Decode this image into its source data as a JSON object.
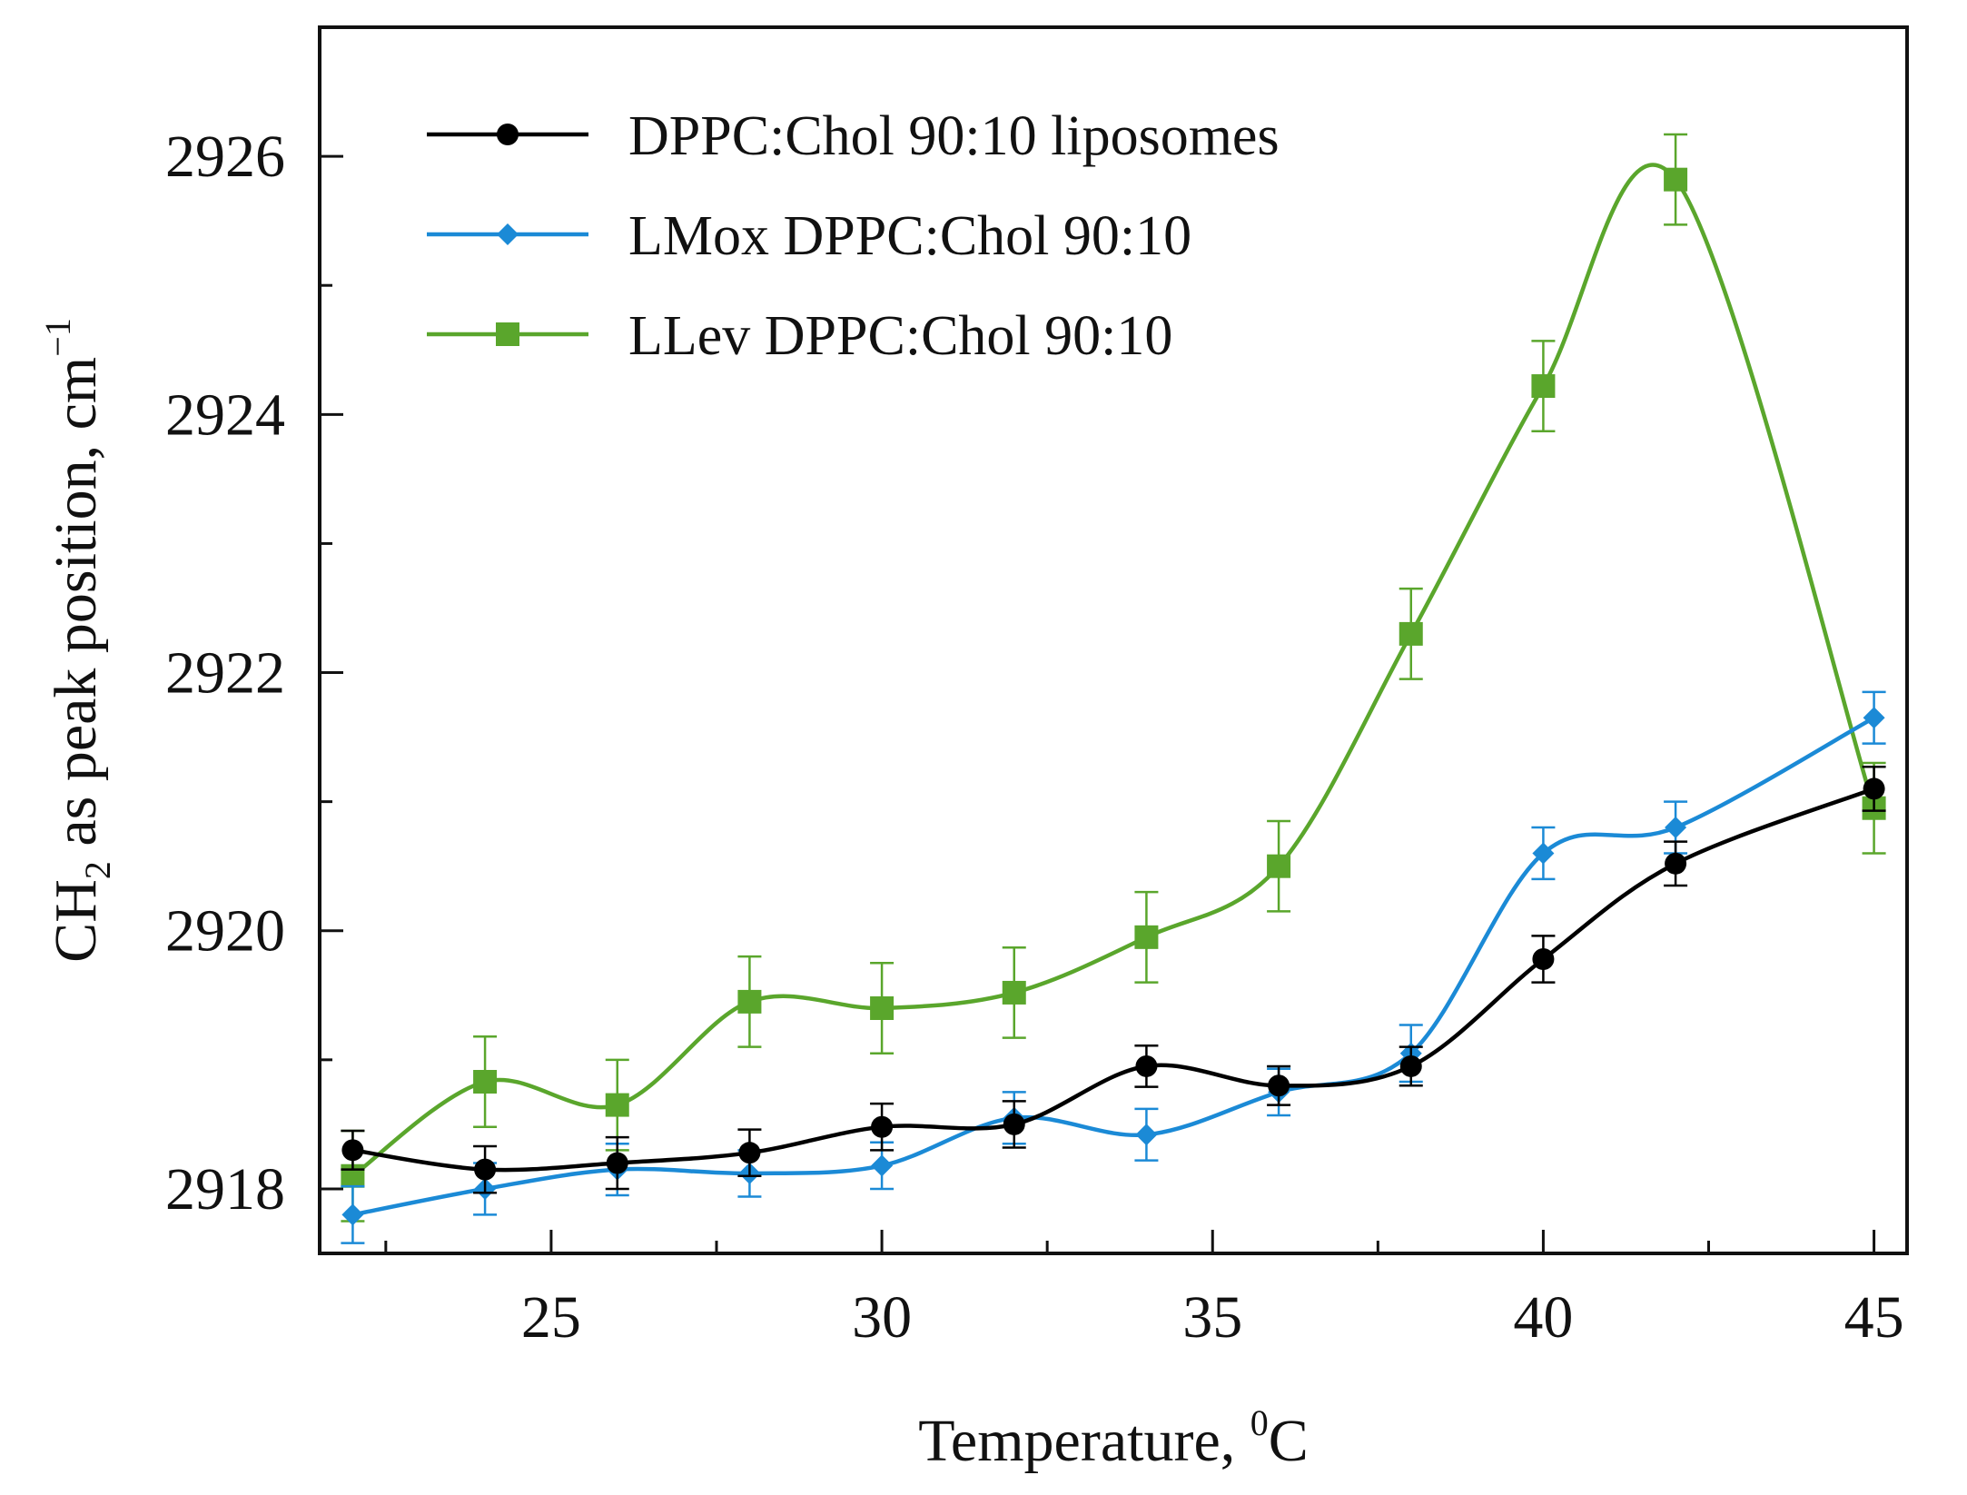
{
  "chart_data": {
    "type": "line",
    "title": "",
    "xlabel": {
      "main": "Temperature, ",
      "superscript": "0",
      "unit": "C"
    },
    "ylabel": {
      "prefix": "CH",
      "subscript": "2",
      "middle": " as peak position, cm",
      "superscript": "−1"
    },
    "xlim": [
      21.5,
      45.5
    ],
    "ylim": [
      2917.5,
      2927.0
    ],
    "x_ticks": [
      25,
      30,
      35,
      40,
      45
    ],
    "x_tick_labels": [
      "25",
      "30",
      "35",
      "40",
      "45"
    ],
    "y_ticks": [
      2918,
      2920,
      2922,
      2924,
      2926
    ],
    "y_tick_labels": [
      "2918",
      "2920",
      "2922",
      "2924",
      "2926"
    ],
    "x_minor_ticks": [
      22.5,
      27.5,
      32.5,
      37.5,
      42.5
    ],
    "y_minor_ticks": [
      2919,
      2921,
      2923,
      2925
    ],
    "legend_position": "top-left",
    "grid": false,
    "x": [
      22,
      24,
      26,
      28,
      30,
      32,
      34,
      36,
      38,
      40,
      42,
      45
    ],
    "series": [
      {
        "name": "DPPC:Chol 90:10 liposomes",
        "color": "#000000",
        "marker": "circle",
        "values": [
          2918.3,
          2918.15,
          2918.2,
          2918.28,
          2918.48,
          2918.5,
          2918.95,
          2918.8,
          2918.95,
          2919.78,
          2920.52,
          2921.1
        ],
        "errors": [
          0.15,
          0.18,
          0.2,
          0.18,
          0.18,
          0.18,
          0.16,
          0.15,
          0.15,
          0.18,
          0.17,
          0.17
        ]
      },
      {
        "name": "LMox DPPC:Chol 90:10",
        "color": "#1b8ad6",
        "marker": "diamond",
        "values": [
          2917.8,
          2918.0,
          2918.15,
          2918.12,
          2918.18,
          2918.55,
          2918.42,
          2918.75,
          2919.05,
          2920.6,
          2920.8,
          2921.65
        ],
        "errors": [
          0.22,
          0.2,
          0.2,
          0.18,
          0.18,
          0.2,
          0.2,
          0.18,
          0.22,
          0.2,
          0.2,
          0.2
        ]
      },
      {
        "name": "LLev DPPC:Chol 90:10",
        "color": "#5aa62c",
        "marker": "square",
        "values": [
          2918.1,
          2918.83,
          2918.65,
          2919.45,
          2919.4,
          2919.52,
          2919.95,
          2920.5,
          2922.3,
          2924.22,
          2925.82,
          2920.95
        ],
        "errors": [
          0.35,
          0.35,
          0.35,
          0.35,
          0.35,
          0.35,
          0.35,
          0.35,
          0.35,
          0.35,
          0.35,
          0.35
        ]
      }
    ]
  }
}
